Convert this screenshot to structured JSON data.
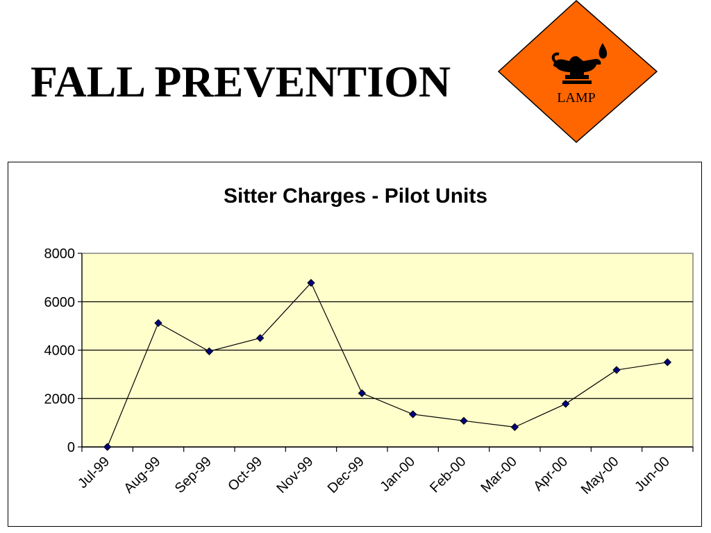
{
  "page": {
    "title": "FALL PREVENTION"
  },
  "logo": {
    "text": "LAMP",
    "icon": "oil-lamp-icon",
    "fill_color": "#ff6600"
  },
  "chart_data": {
    "type": "line",
    "title": "Sitter Charges - Pilot Units",
    "xlabel": "",
    "ylabel": "",
    "categories": [
      "Jul-99",
      "Aug-99",
      "Sep-99",
      "Oct-99",
      "Nov-99",
      "Dec-99",
      "Jan-00",
      "Feb-00",
      "Mar-00",
      "Apr-00",
      "May-00",
      "Jun-00"
    ],
    "series": [
      {
        "values": [
          0,
          5120,
          3950,
          4500,
          6780,
          2220,
          1350,
          1080,
          820,
          1780,
          3180,
          3500
        ]
      }
    ],
    "ylim": [
      0,
      8000
    ],
    "yticks": [
      0,
      2000,
      4000,
      6000,
      8000
    ],
    "grid": true,
    "legend": "none",
    "colors": {
      "plot_background": "#ffffcc",
      "line": "#000000",
      "marker": "#000080"
    }
  }
}
